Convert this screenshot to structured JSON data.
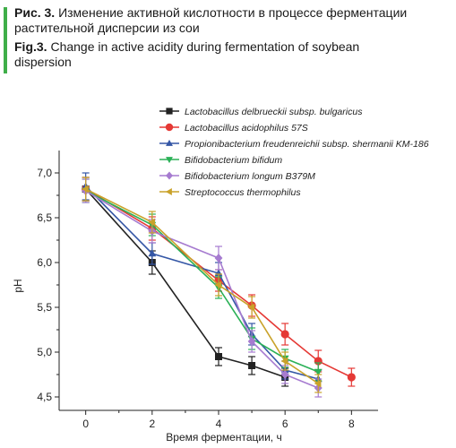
{
  "caption": {
    "ru_label": "Рис. 3.",
    "ru_text_1": "Изменение активной кислотности в процессе ферментации",
    "ru_text_2": "растительной дисперсии из сои",
    "en_label": "Fig.3.",
    "en_text_1": "Change in active acidity during fermentation of soybean",
    "en_text_2": "dispersion",
    "accent_color": "#3fae49"
  },
  "chart_data": {
    "type": "line",
    "xlabel": "Время ферментации, ч",
    "ylabel": "pH",
    "xlim": [
      -0.8,
      8.8
    ],
    "ylim": [
      4.35,
      7.25
    ],
    "xticks": [
      0,
      2,
      4,
      6,
      8
    ],
    "yticks": [
      4.5,
      5.0,
      5.5,
      6.0,
      6.5,
      7.0
    ],
    "ytick_labels": [
      "4,5",
      "5,0",
      "5,5",
      "6,0",
      "6,5",
      "7,0"
    ],
    "grid": false,
    "legend_position": "top-right",
    "series": [
      {
        "name": "Lactobacillus delbrueckii subsp. bulgaricus",
        "color": "#222222",
        "marker": "square",
        "x": [
          0,
          2,
          4,
          5,
          6
        ],
        "y": [
          6.82,
          6.0,
          4.95,
          4.85,
          4.72
        ],
        "err": [
          0.13,
          0.13,
          0.1,
          0.1,
          0.1
        ]
      },
      {
        "name": "Lactobacillus acidophilus 57S",
        "color": "#e53935",
        "marker": "circle",
        "x": [
          0,
          2,
          4,
          5,
          6,
          7,
          8
        ],
        "y": [
          6.82,
          6.38,
          5.8,
          5.52,
          5.2,
          4.9,
          4.72
        ],
        "err": [
          0.13,
          0.13,
          0.12,
          0.12,
          0.12,
          0.12,
          0.1
        ]
      },
      {
        "name": "Propionibacterium freudenreichii subsp. shermanii KM-186",
        "color": "#3557a6",
        "marker": "triangle-up",
        "x": [
          0,
          2,
          4,
          5,
          6,
          7
        ],
        "y": [
          6.85,
          6.1,
          5.88,
          5.2,
          4.8,
          4.7
        ],
        "err": [
          0.15,
          0.12,
          0.12,
          0.12,
          0.1,
          0.1
        ]
      },
      {
        "name": "Bifidobacterium bifidum",
        "color": "#2bb157",
        "marker": "triangle-down",
        "x": [
          0,
          2,
          4,
          5,
          6,
          7
        ],
        "y": [
          6.8,
          6.42,
          5.72,
          5.15,
          4.93,
          4.78
        ],
        "err": [
          0.13,
          0.12,
          0.12,
          0.12,
          0.1,
          0.1
        ]
      },
      {
        "name": "Bifidobacterium longum B379M",
        "color": "#a67bd0",
        "marker": "diamond",
        "x": [
          0,
          2,
          4,
          5,
          6,
          7
        ],
        "y": [
          6.8,
          6.35,
          6.05,
          5.12,
          4.75,
          4.6
        ],
        "err": [
          0.13,
          0.13,
          0.13,
          0.12,
          0.1,
          0.1
        ]
      },
      {
        "name": "Streptococcus thermophilus",
        "color": "#c9a22a",
        "marker": "triangle-left",
        "x": [
          0,
          2,
          4,
          5,
          6,
          7
        ],
        "y": [
          6.82,
          6.45,
          5.75,
          5.5,
          4.9,
          4.65
        ],
        "err": [
          0.13,
          0.12,
          0.12,
          0.12,
          0.1,
          0.1
        ]
      }
    ]
  }
}
